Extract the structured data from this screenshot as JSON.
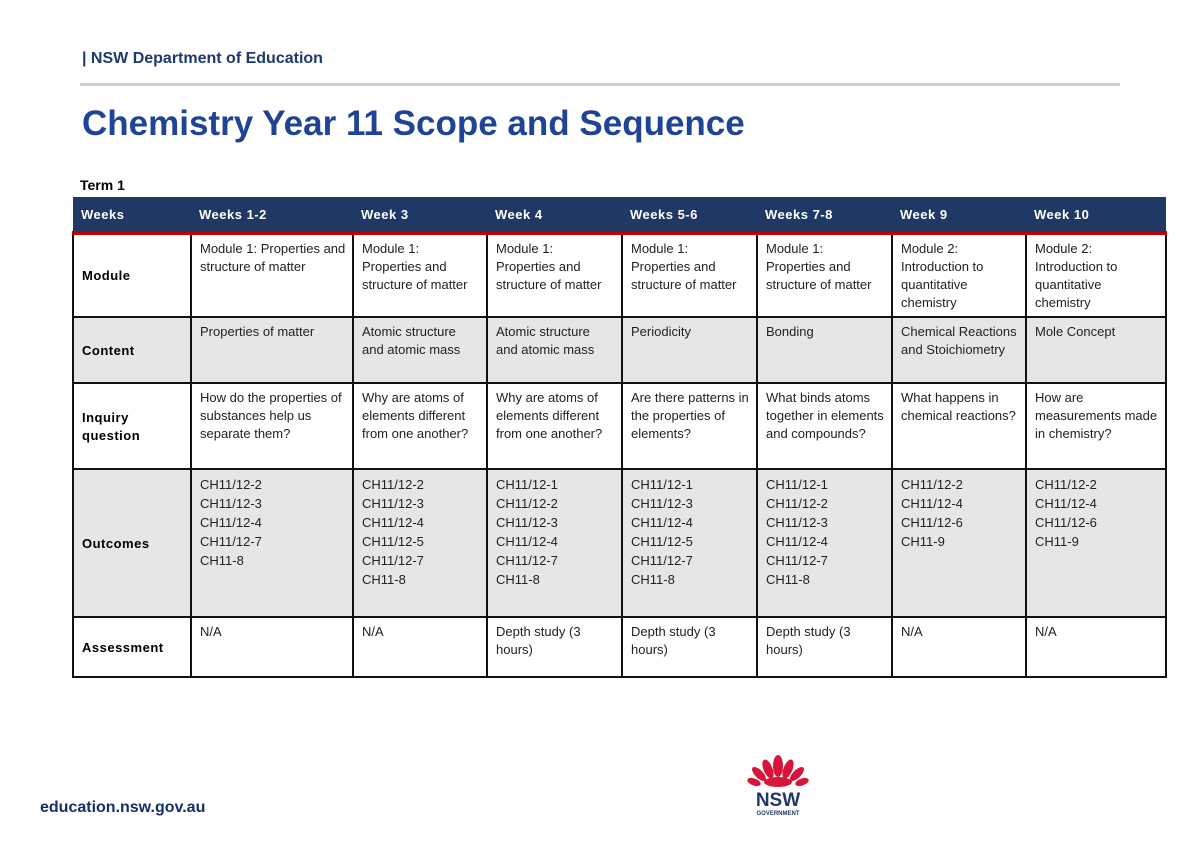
{
  "header": {
    "department": "| NSW Department of Education",
    "title": "Chemistry Year 11 Scope and Sequence",
    "term": "Term 1"
  },
  "table": {
    "columns": [
      "Weeks",
      "Weeks 1-2",
      "Week 3",
      "Week 4",
      "Weeks 5-6",
      "Weeks 7-8",
      "Week 9",
      "Week 10"
    ],
    "rows": [
      {
        "label": "Module",
        "cells": [
          "Module 1: Properties and structure of matter",
          "Module 1: Properties and structure of matter",
          "Module 1: Properties and structure of matter",
          "Module 1: Properties and structure of matter",
          "Module 1: Properties and structure of matter",
          "Module 2: Introduction to quantitative chemistry",
          "Module 2: Introduction to quantitative chemistry"
        ]
      },
      {
        "label": "Content",
        "cells": [
          "Properties of matter",
          "Atomic structure and atomic mass",
          "Atomic structure and atomic mass",
          "Periodicity",
          "Bonding",
          "Chemical Reactions and Stoichiometry",
          "Mole Concept"
        ]
      },
      {
        "label": "Inquiry question",
        "cells": [
          "How do the properties of substances help us separate them?",
          "Why are atoms of elements different from one another?",
          "Why are atoms of elements different from one another?",
          "Are there patterns in the properties of elements?",
          "What binds atoms together in elements and compounds?",
          "What happens in chemical reactions?",
          "How are measurements made in chemistry?"
        ]
      },
      {
        "label": "Outcomes",
        "cells": [
          [
            "CH11/12-2",
            "CH11/12-3",
            "CH11/12-4",
            "CH11/12-7",
            "CH11-8"
          ],
          [
            "CH11/12-2",
            "CH11/12-3",
            "CH11/12-4",
            "CH11/12-5",
            "CH11/12-7",
            "CH11-8"
          ],
          [
            "CH11/12-1",
            "CH11/12-2",
            "CH11/12-3",
            "CH11/12-4",
            "CH11/12-7",
            "CH11-8"
          ],
          [
            "CH11/12-1",
            "CH11/12-3",
            "CH11/12-4",
            "CH11/12-5",
            "CH11/12-7",
            "CH11-8"
          ],
          [
            "CH11/12-1",
            "CH11/12-2",
            "CH11/12-3",
            "CH11/12-4",
            "CH11/12-7",
            "CH11-8"
          ],
          [
            "CH11/12-2",
            "CH11/12-4",
            "CH11/12-6",
            "CH11-9"
          ],
          [
            "CH11/12-2",
            "CH11/12-4",
            "CH11/12-6",
            "CH11-9"
          ]
        ]
      },
      {
        "label": "Assessment",
        "cells": [
          "N/A",
          "N/A",
          "Depth study (3 hours)",
          "Depth study (3 hours)",
          "Depth study (3 hours)",
          "N/A",
          "N/A"
        ]
      }
    ]
  },
  "footer": {
    "url": "education.nsw.gov.au",
    "logo_text": "NSW",
    "logo_subtext": "GOVERNMENT"
  },
  "colors": {
    "header_bg": "#1f3864",
    "accent_red": "#c00000",
    "title_blue": "#1f4496",
    "alt_row": "#e6e6e6"
  }
}
